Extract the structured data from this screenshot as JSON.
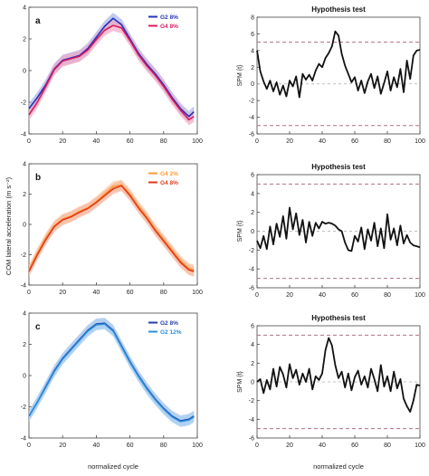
{
  "figure": {
    "y_axis_label": "COM lateral acceleration (m s⁻²)",
    "x_axis_label": "normalized cycle"
  },
  "chart_data": [
    {
      "panel": "a",
      "type": "line",
      "letter": "a",
      "xlim": [
        0,
        100
      ],
      "ylim": [
        -4,
        4
      ],
      "xticks": [
        0,
        20,
        40,
        60,
        80,
        100
      ],
      "yticks": [
        -4,
        -2,
        0,
        2,
        4
      ],
      "legend_position": "top-right",
      "series": [
        {
          "name": "G2 8%",
          "color": "#2233bb",
          "band_color": "#a8b4e8",
          "x": [
            0,
            5,
            10,
            15,
            20,
            25,
            30,
            35,
            40,
            45,
            50,
            55,
            60,
            65,
            70,
            75,
            80,
            85,
            90,
            95,
            98
          ],
          "y": [
            -2.4,
            -1.7,
            -0.9,
            0.1,
            0.65,
            0.8,
            0.95,
            1.4,
            2.1,
            2.8,
            3.3,
            2.9,
            2.0,
            1.1,
            0.4,
            -0.2,
            -0.9,
            -1.7,
            -2.4,
            -2.9,
            -2.6
          ]
        },
        {
          "name": "G4 8%",
          "color": "#d81b60",
          "band_color": "#f4a7c3",
          "x": [
            0,
            5,
            10,
            15,
            20,
            25,
            30,
            35,
            40,
            45,
            50,
            55,
            60,
            65,
            70,
            75,
            80,
            85,
            90,
            95,
            98
          ],
          "y": [
            -2.8,
            -2.0,
            -1.0,
            0.05,
            0.6,
            0.75,
            0.9,
            1.3,
            1.95,
            2.55,
            2.85,
            2.7,
            1.9,
            1.0,
            0.3,
            -0.3,
            -1.0,
            -1.8,
            -2.5,
            -3.1,
            -2.9
          ]
        }
      ]
    },
    {
      "panel": "a-spm",
      "type": "line",
      "title": "Hypothesis test",
      "ylabel": "SPM {t}",
      "xlim": [
        0,
        100
      ],
      "ylim": [
        -6,
        8
      ],
      "xticks": [
        0,
        20,
        40,
        60,
        80,
        100
      ],
      "yticks": [
        -6,
        -4,
        -2,
        0,
        2,
        4,
        6,
        8
      ],
      "threshold": 5.0,
      "x": [
        0,
        2,
        4,
        6,
        8,
        10,
        12,
        14,
        16,
        18,
        20,
        22,
        24,
        26,
        28,
        30,
        32,
        34,
        36,
        38,
        40,
        42,
        44,
        46,
        48,
        50,
        52,
        54,
        56,
        58,
        60,
        62,
        64,
        66,
        68,
        70,
        72,
        74,
        76,
        78,
        80,
        82,
        84,
        86,
        88,
        90,
        92,
        94,
        96,
        98,
        100
      ],
      "y": [
        4.0,
        1.5,
        0.3,
        -0.6,
        0.4,
        -0.9,
        0.2,
        -1.3,
        -0.2,
        -1.5,
        0.4,
        -0.3,
        0.9,
        -1.6,
        1.2,
        0.5,
        1.1,
        0.4,
        1.6,
        2.4,
        2.0,
        3.1,
        3.7,
        4.5,
        6.3,
        5.8,
        3.6,
        2.2,
        1.2,
        0.2,
        0.8,
        -0.8,
        0.4,
        -1.1,
        0.3,
        1.2,
        -0.5,
        0.9,
        -1.2,
        0.1,
        1.5,
        -0.8,
        0.8,
        -0.4,
        1.8,
        -1.0,
        2.8,
        0.6,
        3.4,
        4.0,
        4.1
      ]
    },
    {
      "panel": "b",
      "type": "line",
      "letter": "b",
      "xlim": [
        0,
        100
      ],
      "ylim": [
        -4,
        4
      ],
      "xticks": [
        0,
        20,
        40,
        60,
        80,
        100
      ],
      "yticks": [
        -4,
        -2,
        0,
        2,
        4
      ],
      "legend_position": "top-right",
      "series": [
        {
          "name": "G4 2%",
          "color": "#ff9933",
          "band_color": "#fcd3aa",
          "x": [
            0,
            5,
            10,
            15,
            20,
            25,
            30,
            35,
            40,
            45,
            50,
            55,
            60,
            65,
            70,
            75,
            80,
            85,
            90,
            95,
            98
          ],
          "y": [
            -3.0,
            -1.9,
            -0.9,
            -0.1,
            0.35,
            0.55,
            0.85,
            1.1,
            1.5,
            2.0,
            2.5,
            2.6,
            2.0,
            1.2,
            0.5,
            -0.3,
            -1.0,
            -1.7,
            -2.4,
            -2.9,
            -3.0
          ]
        },
        {
          "name": "G4 8%",
          "color": "#e03a1a",
          "band_color": "#f5b5a0",
          "x": [
            0,
            5,
            10,
            15,
            20,
            25,
            30,
            35,
            40,
            45,
            50,
            55,
            60,
            65,
            70,
            75,
            80,
            85,
            90,
            95,
            98
          ],
          "y": [
            -3.1,
            -2.0,
            -1.0,
            -0.15,
            0.3,
            0.5,
            0.8,
            1.05,
            1.45,
            1.9,
            2.35,
            2.55,
            1.9,
            1.1,
            0.4,
            -0.4,
            -1.1,
            -1.8,
            -2.5,
            -3.0,
            -3.1
          ]
        }
      ]
    },
    {
      "panel": "b-spm",
      "type": "line",
      "title": "Hypothesis test",
      "ylabel": "SPM {t}",
      "xlim": [
        0,
        100
      ],
      "ylim": [
        -6,
        6
      ],
      "xticks": [
        0,
        20,
        40,
        60,
        80,
        100
      ],
      "yticks": [
        -6,
        -4,
        -2,
        0,
        2,
        4,
        6
      ],
      "threshold": 5.0,
      "x": [
        0,
        2,
        4,
        6,
        8,
        10,
        12,
        14,
        16,
        18,
        20,
        22,
        24,
        26,
        28,
        30,
        32,
        34,
        36,
        38,
        40,
        42,
        44,
        46,
        48,
        50,
        52,
        54,
        56,
        58,
        60,
        62,
        64,
        66,
        68,
        70,
        72,
        74,
        76,
        78,
        80,
        82,
        84,
        86,
        88,
        90,
        92,
        94,
        96,
        98,
        100
      ],
      "y": [
        -1.0,
        -1.8,
        -0.5,
        -1.9,
        0.5,
        -1.4,
        0.8,
        -0.6,
        1.6,
        -0.8,
        2.5,
        0.2,
        1.9,
        -0.4,
        1.2,
        -1.2,
        1.0,
        -0.5,
        0.9,
        0.3,
        1.0,
        0.8,
        0.9,
        0.8,
        0.6,
        0.2,
        0.0,
        -1.2,
        -2.0,
        -2.1,
        -0.5,
        -1.1,
        0.4,
        -1.9,
        0.2,
        -1.0,
        0.9,
        -1.6,
        0.3,
        -1.8,
        1.8,
        -0.9,
        0.3,
        -1.5,
        0.6,
        -1.3,
        -0.4,
        -1.2,
        -1.5,
        -1.6,
        -1.7
      ]
    },
    {
      "panel": "c",
      "type": "line",
      "letter": "c",
      "xlim": [
        0,
        100
      ],
      "ylim": [
        -4,
        4
      ],
      "xticks": [
        0,
        20,
        40,
        60,
        80,
        100
      ],
      "yticks": [
        -4,
        -2,
        0,
        2,
        4
      ],
      "legend_position": "top-right",
      "series": [
        {
          "name": "G2 8%",
          "color": "#1f3faa",
          "band_color": "#a9b9e6",
          "x": [
            0,
            5,
            10,
            15,
            20,
            25,
            30,
            35,
            40,
            45,
            50,
            55,
            60,
            65,
            70,
            75,
            80,
            85,
            90,
            95,
            98
          ],
          "y": [
            -2.6,
            -1.7,
            -0.7,
            0.3,
            1.1,
            1.7,
            2.3,
            2.9,
            3.3,
            3.35,
            2.9,
            1.9,
            0.9,
            0.0,
            -0.8,
            -1.5,
            -2.1,
            -2.6,
            -2.9,
            -2.8,
            -2.6
          ]
        },
        {
          "name": "G2 12%",
          "color": "#2a8fdd",
          "band_color": "#a9d3f2",
          "x": [
            0,
            5,
            10,
            15,
            20,
            25,
            30,
            35,
            40,
            45,
            50,
            55,
            60,
            65,
            70,
            75,
            80,
            85,
            90,
            95,
            98
          ],
          "y": [
            -2.6,
            -1.7,
            -0.75,
            0.25,
            1.05,
            1.65,
            2.25,
            2.85,
            3.25,
            3.3,
            2.85,
            1.85,
            0.85,
            -0.05,
            -0.85,
            -1.55,
            -2.15,
            -2.65,
            -2.95,
            -2.85,
            -2.65
          ]
        }
      ]
    },
    {
      "panel": "c-spm",
      "type": "line",
      "title": "Hypothesis test",
      "ylabel": "SPM {t}",
      "xlim": [
        0,
        100
      ],
      "ylim": [
        -6,
        6
      ],
      "xticks": [
        0,
        20,
        40,
        60,
        80,
        100
      ],
      "yticks": [
        -6,
        -4,
        -2,
        0,
        2,
        4,
        6
      ],
      "threshold": 5.0,
      "x": [
        0,
        2,
        4,
        6,
        8,
        10,
        12,
        14,
        16,
        18,
        20,
        22,
        24,
        26,
        28,
        30,
        32,
        34,
        36,
        38,
        40,
        42,
        44,
        46,
        48,
        50,
        52,
        54,
        56,
        58,
        60,
        62,
        64,
        66,
        68,
        70,
        72,
        74,
        76,
        78,
        80,
        82,
        84,
        86,
        88,
        90,
        92,
        94,
        96,
        98,
        100
      ],
      "y": [
        0.0,
        0.3,
        -1.2,
        0.2,
        -0.8,
        1.4,
        -0.5,
        1.6,
        0.8,
        -0.6,
        1.9,
        0.4,
        1.3,
        -0.3,
        0.9,
        0.0,
        1.4,
        -0.8,
        0.6,
        0.2,
        0.9,
        3.4,
        4.7,
        3.9,
        1.8,
        0.4,
        1.1,
        -0.6,
        0.9,
        -0.9,
        0.5,
        1.2,
        -0.3,
        0.6,
        -0.6,
        1.4,
        0.3,
        -1.0,
        1.8,
        -0.5,
        0.6,
        -1.0,
        1.1,
        -0.7,
        0.3,
        -1.8,
        -2.6,
        -3.2,
        -2.0,
        -0.3,
        -0.4
      ]
    }
  ]
}
